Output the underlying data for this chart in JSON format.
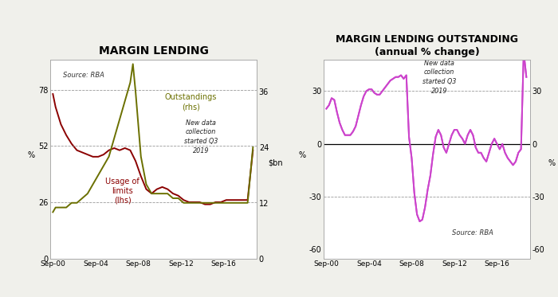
{
  "title1": "MARGIN LENDING",
  "title2": "MARGIN LENDING OUTSTANDING",
  "subtitle2": "(annual % change)",
  "source1": "Source: RBA",
  "source2": "Source: RBA",
  "note1": "New data\ncollection\nstarted Q3\n2019",
  "note2": "New data\ncollection\nstarted Q3\n2019",
  "bg_color": "#f0f0eb",
  "plot_bg": "#ffffff",
  "lhs_color": "#8B0000",
  "rhs_color": "#6B7000",
  "mag_color": "#CC44CC",
  "lhs_yticks": [
    0,
    26,
    52,
    78
  ],
  "rhs_yticks": [
    0,
    12,
    24,
    36
  ],
  "lhs_ylim": [
    0,
    92
  ],
  "rhs_ylim": [
    0,
    43
  ],
  "chart2_yticks": [
    -60,
    -30,
    0,
    30
  ],
  "chart2_ylim": [
    -65,
    48
  ],
  "xtick_labels": [
    "Sep-00",
    "Sep-04",
    "Sep-08",
    "Sep-12",
    "Sep-16"
  ],
  "xtick_pos": [
    2000.75,
    2004.75,
    2008.75,
    2012.75,
    2016.75
  ],
  "usage_x": [
    2000.75,
    2001.0,
    2001.5,
    2002.0,
    2002.5,
    2003.0,
    2003.5,
    2004.0,
    2004.5,
    2005.0,
    2005.5,
    2006.0,
    2006.5,
    2007.0,
    2007.5,
    2008.0,
    2008.5,
    2009.0,
    2009.5,
    2010.0,
    2010.5,
    2011.0,
    2011.5,
    2012.0,
    2012.5,
    2013.0,
    2013.5,
    2014.0,
    2014.5,
    2015.0,
    2015.5,
    2016.0,
    2016.5,
    2017.0,
    2017.5,
    2018.0,
    2018.5,
    2019.0,
    2019.5
  ],
  "usage_y": [
    76,
    70,
    62,
    57,
    53,
    50,
    49,
    48,
    47,
    47,
    48,
    50,
    51,
    50,
    51,
    50,
    45,
    38,
    32,
    30,
    32,
    33,
    32,
    30,
    29,
    27,
    26,
    26,
    26,
    25,
    25,
    26,
    26,
    27,
    27,
    27,
    27,
    27,
    50
  ],
  "outst_x": [
    2000.75,
    2001.0,
    2001.5,
    2002.0,
    2002.5,
    2003.0,
    2003.5,
    2004.0,
    2004.5,
    2005.0,
    2005.5,
    2006.0,
    2006.5,
    2007.0,
    2007.5,
    2008.0,
    2008.25,
    2008.5,
    2009.0,
    2009.5,
    2010.0,
    2010.5,
    2011.0,
    2011.5,
    2012.0,
    2012.5,
    2013.0,
    2013.5,
    2014.0,
    2014.5,
    2015.0,
    2015.5,
    2016.0,
    2016.5,
    2017.0,
    2017.5,
    2018.0,
    2018.5,
    2019.0,
    2019.5
  ],
  "outst_y": [
    10,
    11,
    11,
    11,
    12,
    12,
    13,
    14,
    16,
    18,
    20,
    22,
    26,
    30,
    34,
    38,
    42,
    36,
    22,
    16,
    14,
    14,
    14,
    14,
    13,
    13,
    12,
    12,
    12,
    12,
    12,
    12,
    12,
    12,
    12,
    12,
    12,
    12,
    12,
    24
  ],
  "ann_x": [
    2000.75,
    2001.0,
    2001.25,
    2001.5,
    2001.75,
    2002.0,
    2002.25,
    2002.5,
    2002.75,
    2003.0,
    2003.25,
    2003.5,
    2003.75,
    2004.0,
    2004.25,
    2004.5,
    2004.75,
    2005.0,
    2005.25,
    2005.5,
    2005.75,
    2006.0,
    2006.25,
    2006.5,
    2006.75,
    2007.0,
    2007.25,
    2007.5,
    2007.75,
    2008.0,
    2008.25,
    2008.5,
    2008.75,
    2009.0,
    2009.25,
    2009.5,
    2009.75,
    2010.0,
    2010.25,
    2010.5,
    2010.75,
    2011.0,
    2011.25,
    2011.5,
    2011.75,
    2012.0,
    2012.25,
    2012.5,
    2012.75,
    2013.0,
    2013.25,
    2013.5,
    2013.75,
    2014.0,
    2014.25,
    2014.5,
    2014.75,
    2015.0,
    2015.25,
    2015.5,
    2015.75,
    2016.0,
    2016.25,
    2016.5,
    2016.75,
    2017.0,
    2017.25,
    2017.5,
    2017.75,
    2018.0,
    2018.25,
    2018.5,
    2018.75,
    2019.0,
    2019.25,
    2019.5
  ],
  "ann_y": [
    20,
    22,
    26,
    25,
    18,
    12,
    8,
    5,
    5,
    5,
    7,
    10,
    16,
    22,
    27,
    30,
    31,
    31,
    29,
    28,
    28,
    30,
    32,
    34,
    36,
    37,
    38,
    38,
    39,
    37,
    39,
    4,
    -8,
    -28,
    -40,
    -44,
    -43,
    -36,
    -26,
    -18,
    -6,
    4,
    8,
    5,
    -2,
    -5,
    0,
    5,
    8,
    8,
    5,
    3,
    0,
    5,
    8,
    5,
    -2,
    -5,
    -5,
    -8,
    -10,
    -5,
    0,
    3,
    0,
    -3,
    0,
    -5,
    -8,
    -10,
    -12,
    -10,
    -5,
    -3,
    52,
    38
  ]
}
